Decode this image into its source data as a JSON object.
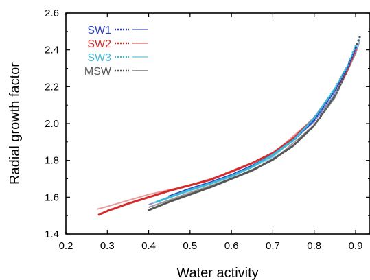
{
  "chart_data": {
    "type": "scatter",
    "title": "",
    "xlabel": "Water activity",
    "ylabel": "Radial growth factor",
    "xlim": [
      0.2,
      0.92
    ],
    "ylim": [
      1.4,
      2.6
    ],
    "xticks": [
      0.2,
      0.3,
      0.4,
      0.5,
      0.6,
      0.7,
      0.8,
      0.9
    ],
    "xtick_labels": [
      "0.2",
      "0.3",
      "0.4",
      "0.5",
      "0.6",
      "0.7",
      "0.8",
      "0.9"
    ],
    "yticks": [
      1.4,
      1.6,
      1.8,
      2.0,
      2.2,
      2.4,
      2.6
    ],
    "ytick_labels": [
      "1.4",
      "1.6",
      "1.8",
      "2.0",
      "2.2",
      "2.4",
      "2.6"
    ],
    "grid": false,
    "legend": "top-left",
    "series": [
      {
        "name": "SW1",
        "color": "#2a3fbf",
        "fit_color": "#8a8fd8",
        "measured": {
          "x": [
            0.45,
            0.5,
            0.55,
            0.6,
            0.65,
            0.7,
            0.75,
            0.8,
            0.85,
            0.88,
            0.9
          ],
          "y": [
            1.605,
            1.645,
            1.68,
            1.72,
            1.77,
            1.83,
            1.91,
            2.02,
            2.18,
            2.3,
            2.41
          ]
        },
        "fit": {
          "x": [
            0.4,
            0.5,
            0.6,
            0.7,
            0.8,
            0.85,
            0.9,
            0.91
          ],
          "y": [
            1.56,
            1.635,
            1.71,
            1.82,
            2.01,
            2.16,
            2.39,
            2.45
          ]
        }
      },
      {
        "name": "SW2",
        "color": "#d42a2a",
        "fit_color": "#eb9a9a",
        "measured": {
          "x": [
            0.28,
            0.3,
            0.35,
            0.4,
            0.45,
            0.5,
            0.55,
            0.6,
            0.65,
            0.7,
            0.75,
            0.8,
            0.85,
            0.88,
            0.9
          ],
          "y": [
            1.505,
            1.525,
            1.565,
            1.6,
            1.635,
            1.665,
            1.695,
            1.74,
            1.785,
            1.84,
            1.92,
            2.03,
            2.18,
            2.29,
            2.4
          ]
        },
        "fit": {
          "x": [
            0.275,
            0.3,
            0.4,
            0.5,
            0.6,
            0.7,
            0.8,
            0.85,
            0.9
          ],
          "y": [
            1.535,
            1.55,
            1.615,
            1.665,
            1.735,
            1.835,
            2.03,
            2.18,
            2.4
          ]
        }
      },
      {
        "name": "SW3",
        "color": "#3fb8d8",
        "fit_color": "#9edcec",
        "measured": {
          "x": [
            0.42,
            0.45,
            0.5,
            0.55,
            0.6,
            0.65,
            0.7,
            0.75,
            0.8,
            0.85,
            0.88,
            0.9
          ],
          "y": [
            1.575,
            1.6,
            1.64,
            1.675,
            1.715,
            1.765,
            1.83,
            1.91,
            2.03,
            2.19,
            2.31,
            2.42
          ]
        },
        "fit": {
          "x": [
            0.41,
            0.5,
            0.6,
            0.7,
            0.8,
            0.85,
            0.9,
            0.91
          ],
          "y": [
            1.57,
            1.635,
            1.71,
            1.815,
            2.02,
            2.17,
            2.4,
            2.46
          ]
        }
      },
      {
        "name": "MSW",
        "color": "#555555",
        "fit_color": "#999999",
        "measured": {
          "x": [
            0.4,
            0.45,
            0.5,
            0.55,
            0.6,
            0.65,
            0.7,
            0.75,
            0.8,
            0.85,
            0.88,
            0.91
          ],
          "y": [
            1.53,
            1.575,
            1.615,
            1.655,
            1.7,
            1.745,
            1.805,
            1.88,
            1.99,
            2.15,
            2.29,
            2.47
          ]
        },
        "fit": {
          "x": [
            0.4,
            0.5,
            0.6,
            0.7,
            0.8,
            0.85,
            0.9,
            0.91
          ],
          "y": [
            1.545,
            1.625,
            1.7,
            1.8,
            1.99,
            2.14,
            2.38,
            2.45
          ]
        }
      }
    ]
  }
}
